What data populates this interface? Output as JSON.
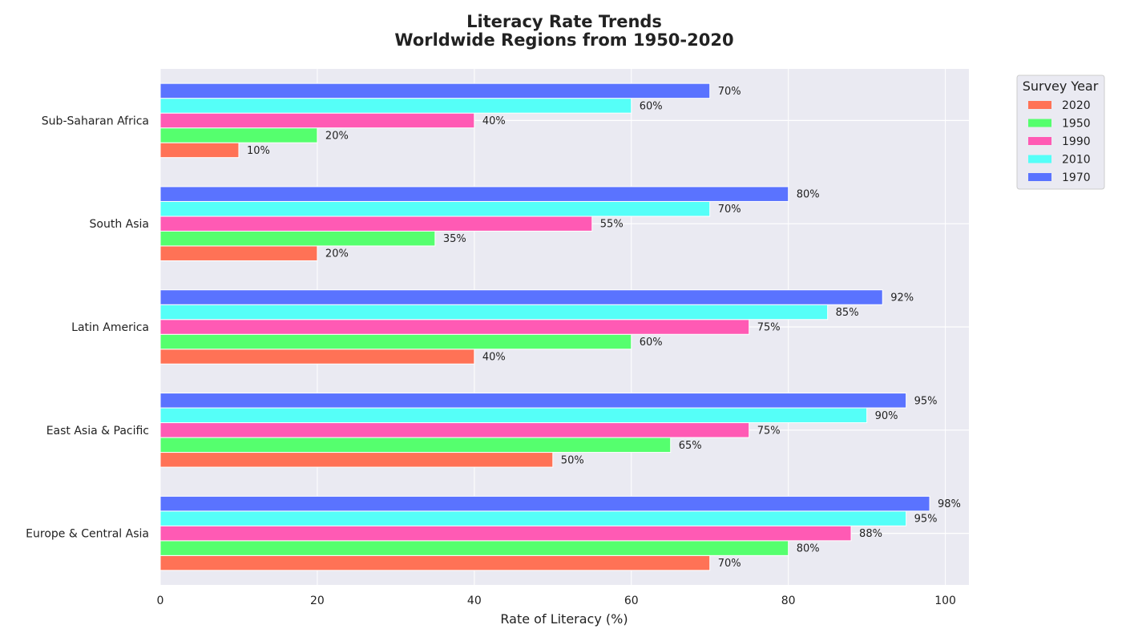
{
  "chart_data": {
    "type": "bar",
    "orientation": "horizontal",
    "title": "Literacy Rate Trends",
    "subtitle": "Worldwide Regions from 1950-2020",
    "xlabel": "Rate of Literacy (%)",
    "ylabel": "",
    "xlim": [
      0,
      103
    ],
    "xticks": [
      "0",
      "20",
      "40",
      "60",
      "80",
      "100"
    ],
    "categories": [
      "Sub-Saharan Africa",
      "South Asia",
      "Latin America",
      "East Asia & Pacific",
      "Europe & Central Asia"
    ],
    "value_label_suffix": "%",
    "legend_title": "Survey Year",
    "legend_position": "upper right, outside plot",
    "grid": true,
    "series": [
      {
        "name": "2020",
        "color": "#FF7256",
        "values": [
          10,
          20,
          40,
          50,
          70
        ]
      },
      {
        "name": "1950",
        "color": "#55FF6E",
        "values": [
          20,
          35,
          60,
          65,
          80
        ]
      },
      {
        "name": "1990",
        "color": "#FF5AB4",
        "values": [
          40,
          55,
          75,
          75,
          88
        ]
      },
      {
        "name": "2010",
        "color": "#55FFF8",
        "values": [
          60,
          70,
          85,
          90,
          95
        ]
      },
      {
        "name": "1970",
        "color": "#5A73FF",
        "values": [
          70,
          80,
          92,
          95,
          98
        ]
      }
    ]
  }
}
